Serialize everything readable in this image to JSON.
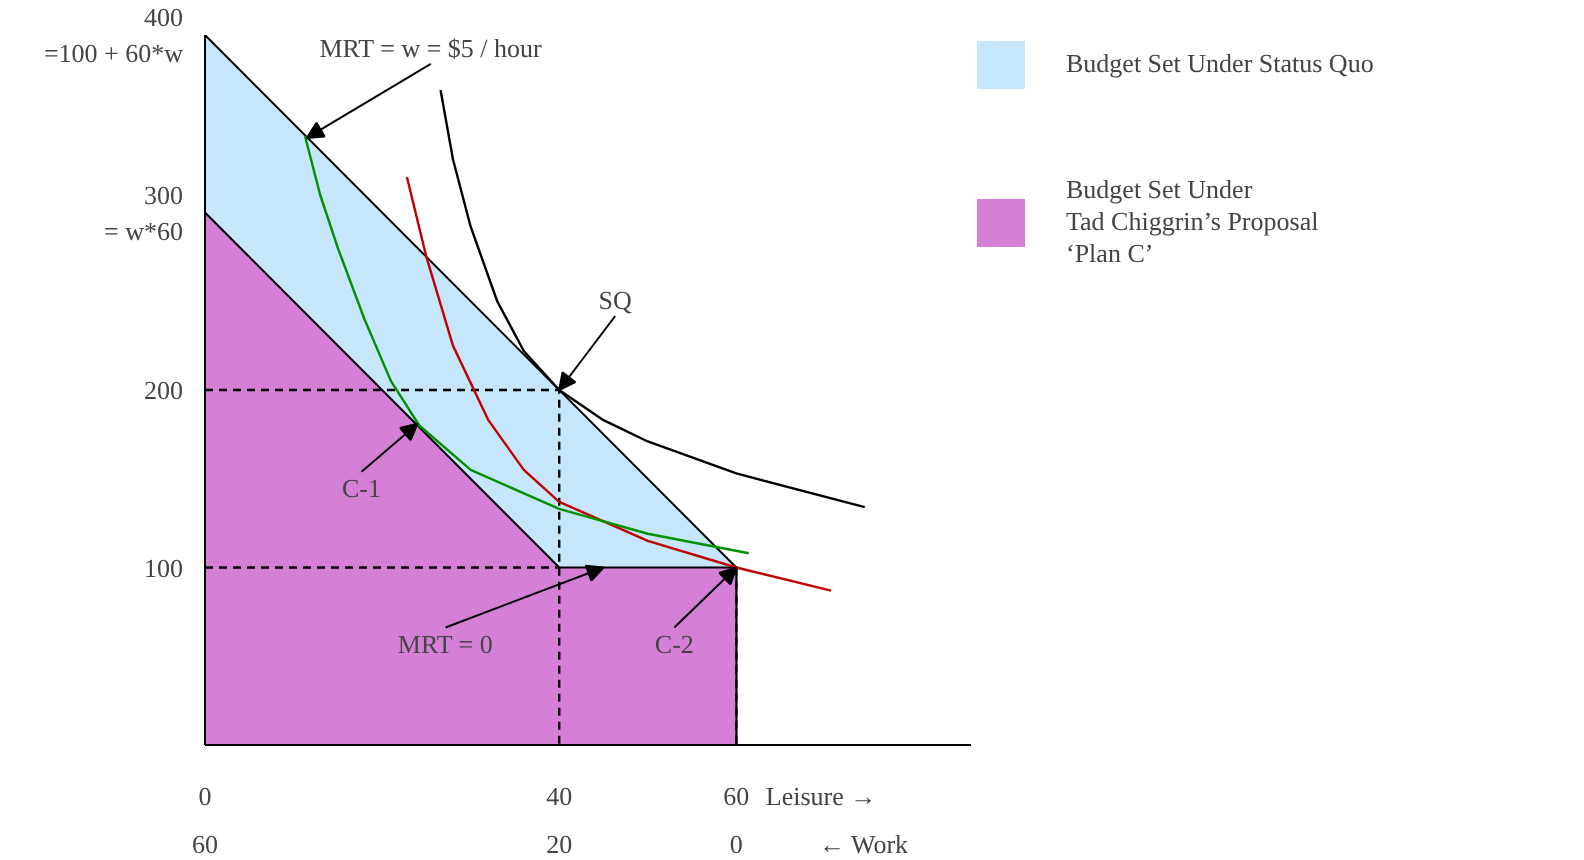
{
  "chart_data": {
    "type": "area",
    "xlim": [
      0,
      86.5
    ],
    "ylim": [
      0,
      400
    ],
    "xticks": [
      0,
      40,
      60
    ],
    "yticks": [
      {
        "value": 100,
        "label": "100"
      },
      {
        "value": 200,
        "label": "200"
      },
      {
        "value": 300,
        "label": "300\n= w*60"
      },
      {
        "value": 400,
        "label": "400\n=100 + 60*w"
      }
    ],
    "x2lim": [
      60,
      -26.5
    ],
    "x2ticks": [
      60,
      20,
      0
    ],
    "xlabel": "Leisure →",
    "x2label": "← Work",
    "grid": false,
    "legend": "right",
    "series": [
      {
        "name": "Budget Set Under Status Quo",
        "color": "#c5e6fb",
        "x": [
          0,
          60
        ],
        "values": [
          400,
          100
        ]
      },
      {
        "name": "Budget Set Under\nTad Chiggrin’s Proposal\n‘Plan C’",
        "color": "#d67fd6",
        "x": [
          0,
          40,
          60
        ],
        "values": [
          300,
          100,
          100
        ]
      },
      {
        "type": "line",
        "color": "#000000",
        "line_style": "dashed",
        "x": [
          0,
          40,
          40
        ],
        "values": [
          200,
          200,
          0
        ]
      },
      {
        "type": "line",
        "color": "#000000",
        "line_style": "dashed",
        "x": [
          0,
          40
        ],
        "values": [
          100,
          100
        ]
      },
      {
        "type": "line",
        "color": "#000000",
        "line_style": "dashed",
        "x": [
          60,
          60
        ],
        "values": [
          100,
          0
        ]
      },
      {
        "type": "line",
        "color": "#000000",
        "line_style": "solid",
        "x": [
          26.6,
          28,
          30,
          33,
          36,
          40,
          45,
          50,
          60,
          74.5
        ],
        "values": [
          369,
          330,
          292,
          250,
          222,
          200,
          183,
          171,
          153,
          134
        ]
      },
      {
        "type": "line",
        "color": "#c00000",
        "line_style": "solid",
        "x": [
          22.8,
          25,
          28,
          32,
          36,
          40,
          50,
          60,
          70.7
        ],
        "values": [
          320,
          275,
          225,
          183,
          155,
          137,
          115,
          100,
          87
        ]
      },
      {
        "type": "line",
        "color": "#009000",
        "line_style": "solid",
        "x": [
          11.3,
          13,
          15,
          18,
          21,
          24.2,
          30,
          40,
          50,
          61.4
        ],
        "values": [
          343,
          310,
          280,
          240,
          205,
          180,
          155,
          133,
          119,
          108
        ]
      }
    ],
    "annotations": [
      {
        "text": "MRT = w = $5 / hour",
        "x": 11.5,
        "y": 342
      },
      {
        "text": "SQ",
        "x": 40,
        "y": 200
      },
      {
        "text": "C-1",
        "x": 24,
        "y": 181
      },
      {
        "text": "MRT = 0",
        "x": 45,
        "y": 100
      },
      {
        "text": "C-2",
        "x": 60,
        "y": 100
      }
    ]
  }
}
